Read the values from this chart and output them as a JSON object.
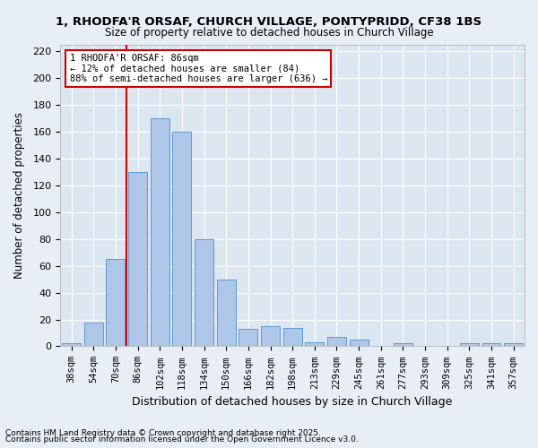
{
  "title1": "1, RHODFA'R ORSAF, CHURCH VILLAGE, PONTYPRIDD, CF38 1BS",
  "title2": "Size of property relative to detached houses in Church Village",
  "xlabel": "Distribution of detached houses by size in Church Village",
  "ylabel": "Number of detached properties",
  "categories": [
    "38sqm",
    "54sqm",
    "70sqm",
    "86sqm",
    "102sqm",
    "118sqm",
    "134sqm",
    "150sqm",
    "166sqm",
    "182sqm",
    "198sqm",
    "213sqm",
    "229sqm",
    "245sqm",
    "261sqm",
    "277sqm",
    "293sqm",
    "309sqm",
    "325sqm",
    "341sqm",
    "357sqm"
  ],
  "values": [
    2,
    18,
    65,
    130,
    170,
    160,
    80,
    50,
    13,
    15,
    14,
    3,
    7,
    5,
    0,
    2,
    0,
    0,
    2,
    2,
    2
  ],
  "bar_color": "#aec6e8",
  "bar_edge_color": "#5b9bd5",
  "vline_x": 3,
  "vline_color": "#cc0000",
  "annotation_lines": [
    "1 RHODFA'R ORSAF: 86sqm",
    "← 12% of detached houses are smaller (84)",
    "88% of semi-detached houses are larger (636) →"
  ],
  "annotation_box_color": "#ffffff",
  "annotation_box_edge": "#cc0000",
  "background_color": "#e8eef5",
  "plot_bg_color": "#dce6f0",
  "ylim": [
    0,
    225
  ],
  "yticks": [
    0,
    20,
    40,
    60,
    80,
    100,
    120,
    140,
    160,
    180,
    200,
    220
  ],
  "footnote1": "Contains HM Land Registry data © Crown copyright and database right 2025.",
  "footnote2": "Contains public sector information licensed under the Open Government Licence v3.0."
}
